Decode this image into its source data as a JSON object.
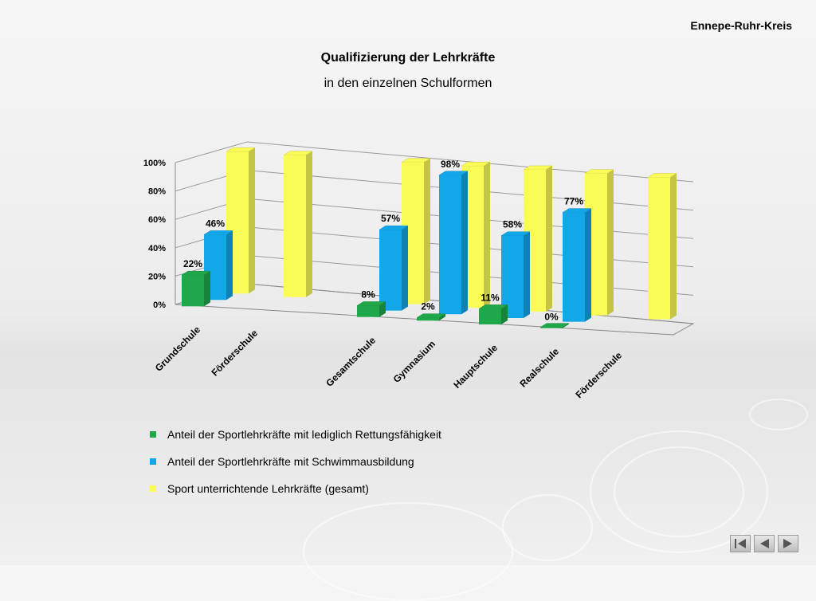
{
  "header": {
    "region": "Ennepe-Ruhr-Kreis"
  },
  "title": "Qualifizierung der Lehrkräfte",
  "subtitle": "in den einzelnen Schulformen",
  "colors": {
    "green": "#1fa84a",
    "blue": "#12a7e8",
    "yellow": "#fbfb58"
  },
  "chart_data": {
    "type": "bar",
    "categories": [
      "Grundschule",
      "Förderschule",
      "Gesamtschule",
      "Gymnasium",
      "Hauptschule",
      "Realschule",
      "Förderschule"
    ],
    "series": [
      {
        "name": "Anteil der Sportlehrkräfte mit lediglich Rettungsfähigkeit",
        "values": [
          22,
          null,
          8,
          2,
          11,
          0,
          null
        ],
        "labels": [
          "22%",
          "",
          "8%",
          "2%",
          "11%",
          "0%",
          ""
        ]
      },
      {
        "name": "Anteil der Sportlehrkräfte mit Schwimmausbildung",
        "values": [
          46,
          null,
          57,
          98,
          58,
          77,
          null
        ],
        "labels": [
          "46%",
          "",
          "57%",
          "98%",
          "58%",
          "77%",
          ""
        ]
      },
      {
        "name": "Sport unterrichtende Lehrkräfte (gesamt)",
        "values": [
          100,
          100,
          100,
          100,
          100,
          100,
          100
        ]
      }
    ],
    "yticks": [
      "0%",
      "20%",
      "40%",
      "60%",
      "80%",
      "100%"
    ],
    "ylim": [
      0,
      100
    ],
    "grid": true,
    "legend_position": "bottom"
  },
  "legend": [
    {
      "label": "Anteil der Sportlehrkräfte mit lediglich Rettungsfähigkeit",
      "color": "#1fa84a"
    },
    {
      "label": "Anteil der Sportlehrkräfte mit Schwimmausbildung",
      "color": "#12a7e8"
    },
    {
      "label": "Sport unterrichtende Lehrkräfte (gesamt)",
      "color": "#fbfb58"
    }
  ],
  "nav": {
    "first_icon": "first-page-icon",
    "prev_icon": "previous-page-icon",
    "next_icon": "next-page-icon"
  }
}
